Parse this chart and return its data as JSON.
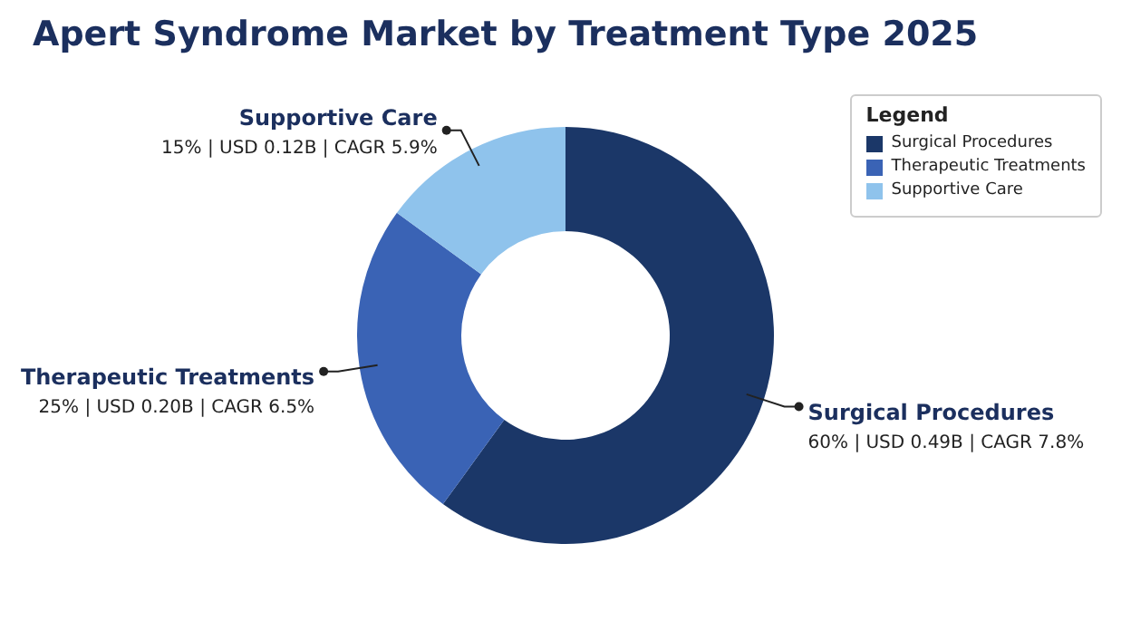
{
  "chart_data": {
    "type": "donut",
    "title": "Apert Syndrome Market by Treatment Type 2025",
    "legend_title": "Legend",
    "legend": "top right",
    "categories": [
      "Surgical Procedures",
      "Therapeutic Treatments",
      "Supportive Care"
    ],
    "values": [
      60,
      25,
      15
    ],
    "value_labels": [
      "60% | USD 0.49B | CAGR 7.8%",
      "25% | USD 0.20B | CAGR 6.5%",
      "15% | USD 0.12B | CAGR 5.9%"
    ],
    "colors": [
      "#1b3768",
      "#3a63b5",
      "#8fc3ec"
    ]
  }
}
